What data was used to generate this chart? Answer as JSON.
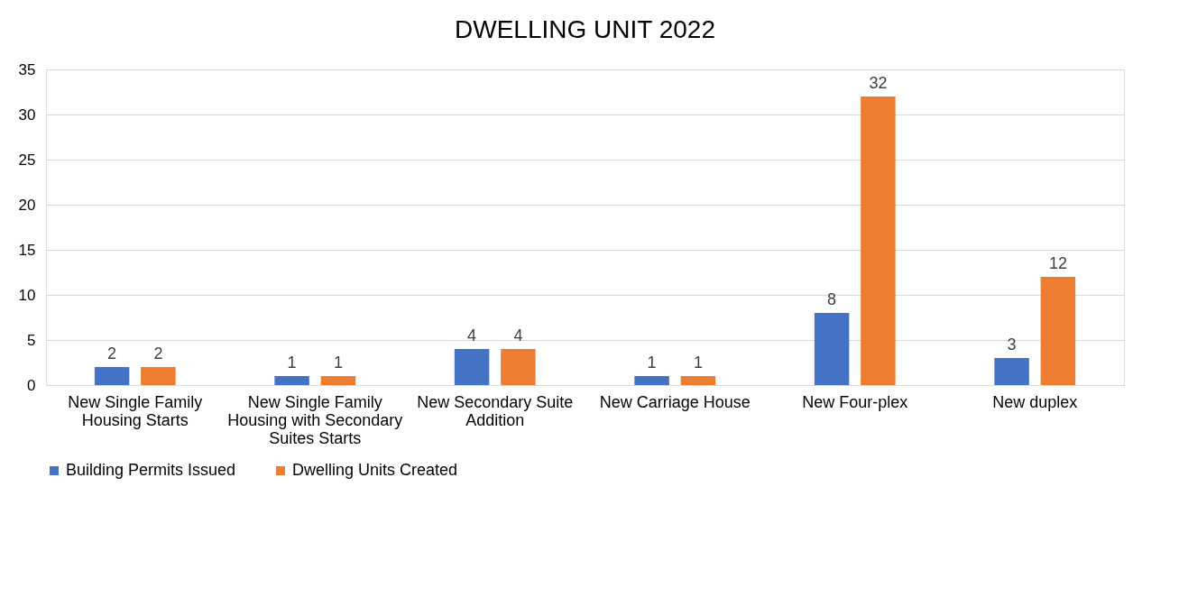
{
  "chart_data": {
    "type": "bar",
    "title": "DWELLING UNIT 2022",
    "categories": [
      "New Single Family Housing Starts",
      "New Single Family Housing with Secondary Suites Starts",
      "New Secondary Suite Addition",
      "New Carriage House",
      "New Four-plex",
      "New duplex"
    ],
    "series": [
      {
        "name": "Building Permits Issued",
        "color": "#4472c4",
        "values": [
          2,
          1,
          4,
          1,
          8,
          3
        ]
      },
      {
        "name": "Dwelling Units Created",
        "color": "#ed7d31",
        "values": [
          2,
          1,
          4,
          1,
          32,
          12
        ]
      }
    ],
    "ylim": [
      0,
      35
    ],
    "yticks": [
      0,
      5,
      10,
      15,
      20,
      25,
      30,
      35
    ],
    "grid": "y",
    "legend": "bottom",
    "data_labels": true
  }
}
